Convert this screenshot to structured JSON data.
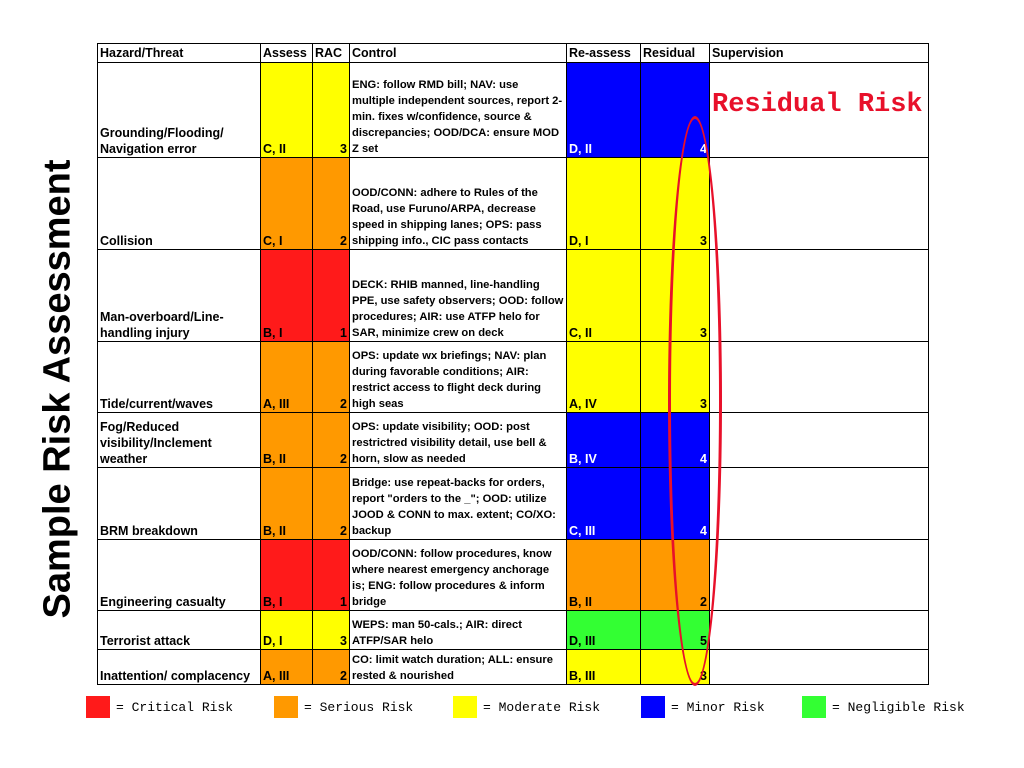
{
  "side_title": "Sample Risk Assessment",
  "annotation": "Residual Risk",
  "colors": {
    "critical": "#ff1a1a",
    "serious": "#ff9900",
    "moderate": "#ffff00",
    "minor": "#0000ff",
    "negligible": "#33ff33",
    "annotation": "#e8102a"
  },
  "headers": {
    "hazard": "Hazard/Threat",
    "assess": "Assess",
    "rac": "RAC",
    "control": "Control",
    "reassess": "Re-assess",
    "residual": "Residual",
    "supervision": "Supervision"
  },
  "rows": [
    {
      "hazard": "Grounding/Flooding/ Navigation error",
      "assess": "C, II",
      "rac": "3",
      "risk": "moderate",
      "control": "ENG: follow RMD bill; NAV: use multiple independent sources, report 2-min. fixes w/confidence, source & discrepancies; OOD/DCA: ensure MOD Z set",
      "reassess": "D, II",
      "residual": "4",
      "residual_risk": "minor",
      "supervision": ""
    },
    {
      "hazard": "Collision",
      "assess": "C, I",
      "rac": "2",
      "risk": "serious",
      "control": "OOD/CONN: adhere to Rules of the Road, use Furuno/ARPA, decrease speed in shipping lanes; OPS: pass shipping info., CIC pass contacts",
      "reassess": "D, I",
      "residual": "3",
      "residual_risk": "moderate",
      "supervision": ""
    },
    {
      "hazard": "Man-overboard/Line-handling injury",
      "assess": "B, I",
      "rac": "1",
      "risk": "critical",
      "control": "DECK: RHIB manned, line-handling PPE, use safety observers; OOD: follow procedures; AIR: use ATFP helo for SAR, minimize crew on deck",
      "reassess": "C, II",
      "residual": "3",
      "residual_risk": "moderate",
      "supervision": ""
    },
    {
      "hazard": "Tide/current/waves",
      "assess": "A, III",
      "rac": "2",
      "risk": "serious",
      "control": "OPS: update wx briefings; NAV: plan during favorable conditions; AIR: restrict access to flight deck during high seas",
      "reassess": "A, IV",
      "residual": "3",
      "residual_risk": "moderate",
      "supervision": ""
    },
    {
      "hazard": "Fog/Reduced visibility/Inclement weather",
      "assess": "B, II",
      "rac": "2",
      "risk": "serious",
      "control": "OPS: update visibility; OOD: post restrictred visibility detail, use bell & horn, slow as needed",
      "reassess": "B, IV",
      "residual": "4",
      "residual_risk": "minor",
      "supervision": ""
    },
    {
      "hazard": "BRM breakdown",
      "assess": "B, II",
      "rac": "2",
      "risk": "serious",
      "control": "Bridge: use repeat-backs for orders, report \"orders to the _\"; OOD: utilize JOOD & CONN to max. extent; CO/XO: backup",
      "reassess": "C, III",
      "residual": "4",
      "residual_risk": "minor",
      "supervision": ""
    },
    {
      "hazard": "Engineering casualty",
      "assess": "B, I",
      "rac": "1",
      "risk": "critical",
      "control": "OOD/CONN: follow procedures, know where nearest emergency anchorage is; ENG: follow procedures & inform bridge",
      "reassess": "B, II",
      "residual": "2",
      "residual_risk": "serious",
      "supervision": ""
    },
    {
      "hazard": "Terrorist attack",
      "assess": "D, I",
      "rac": "3",
      "risk": "moderate",
      "control": "WEPS: man 50-cals.; AIR: direct ATFP/SAR helo",
      "reassess": "D, III",
      "residual": "5",
      "residual_risk": "negligible",
      "supervision": ""
    },
    {
      "hazard": "Inattention/ complacency",
      "assess": "A, III",
      "rac": "2",
      "risk": "serious",
      "control": "CO: limit watch duration; ALL: ensure rested & nourished",
      "reassess": "B, III",
      "residual": "3",
      "residual_risk": "moderate",
      "supervision": ""
    }
  ],
  "legend": [
    {
      "key": "critical",
      "label": "= Critical Risk"
    },
    {
      "key": "serious",
      "label": "= Serious Risk"
    },
    {
      "key": "moderate",
      "label": "= Moderate Risk"
    },
    {
      "key": "minor",
      "label": "= Minor Risk"
    },
    {
      "key": "negligible",
      "label": "= Negligible Risk"
    }
  ]
}
